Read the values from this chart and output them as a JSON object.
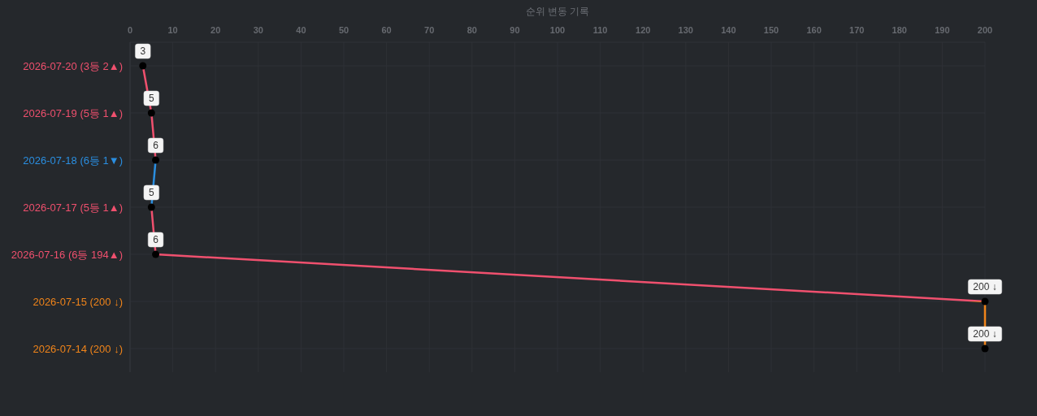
{
  "chart_data": {
    "type": "line",
    "orientation": "horizontal",
    "xlabel": "순위 변동 기록",
    "categories": [
      "2026-07-20 (3등 2▲)",
      "2026-07-19 (5등 1▲)",
      "2026-07-18 (6등 1▼)",
      "2026-07-17 (5등 1▲)",
      "2026-07-16 (6등 194▲)",
      "2026-07-15 (200 ↓)",
      "2026-07-14 (200 ↓)"
    ],
    "series": [
      {
        "color": "#000000",
        "colors": [
          "#f0506e",
          "#f0506e",
          "#2a8ee0",
          "#f0506e",
          "#f0506e",
          "#f0841a",
          "#f0841a"
        ],
        "values": [
          3,
          5,
          6,
          5,
          6,
          200,
          200
        ],
        "value_labels": [
          "3",
          "5",
          "6",
          "5",
          "6",
          "200 ↓",
          "200 ↓"
        ]
      }
    ],
    "xlim": [
      0,
      200
    ],
    "xticks": [
      0,
      10,
      20,
      30,
      40,
      50,
      60,
      70,
      80,
      90,
      100,
      110,
      120,
      130,
      140,
      150,
      160,
      170,
      180,
      190,
      200
    ],
    "grid": true,
    "marker": "circle",
    "line_style": "solid"
  }
}
